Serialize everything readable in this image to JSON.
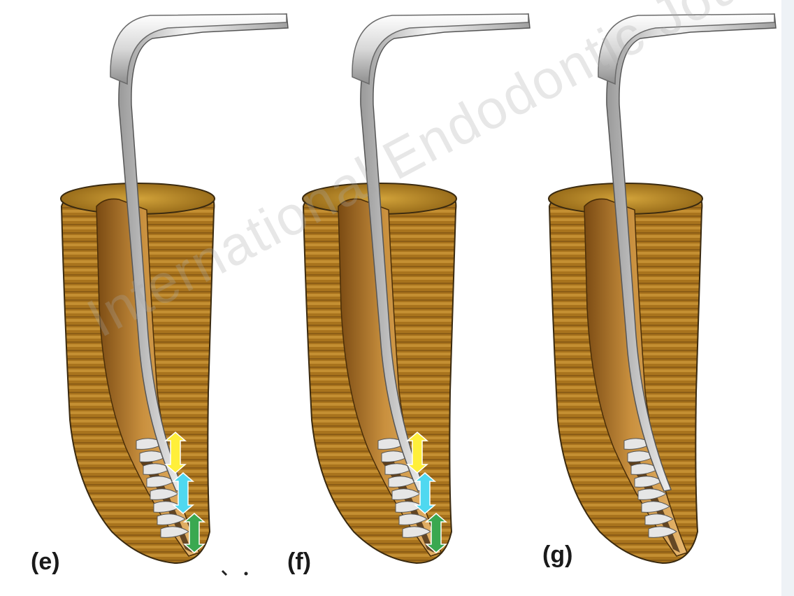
{
  "panels": [
    {
      "label": "(e)",
      "arrows": [
        "yellow",
        "cyan",
        "green"
      ]
    },
    {
      "label": "(f)",
      "arrows": [
        "yellow",
        "cyan",
        "green"
      ]
    },
    {
      "label": "(g)",
      "arrows": []
    }
  ],
  "watermark": "International Endodontic Journal",
  "colors": {
    "dentin": "#a8731d",
    "dentin_dark": "#7a4f10",
    "dentin_stripe": "#c48f32",
    "canal": "#c9903e",
    "file_light": "#f2f2f2",
    "file_dark": "#8a8a8a",
    "arrow_yellow": "#ffef3a",
    "arrow_cyan": "#4fd8f0",
    "arrow_green": "#3aa850",
    "debris": "#3a2410"
  }
}
